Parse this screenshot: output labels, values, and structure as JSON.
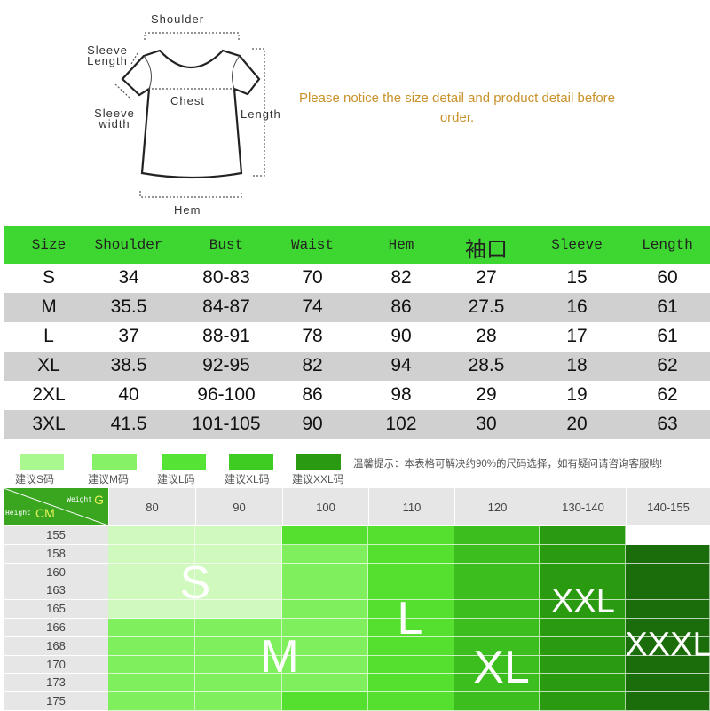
{
  "diagram": {
    "shoulder": "Shoulder",
    "sleeve_length": "Sleeve Length",
    "chest": "Chest",
    "sleeve_width": "Sleeve width",
    "length": "Length",
    "hem": "Hem"
  },
  "notice": "Please notice the size detail and product detail before order.",
  "size_table": {
    "headers": [
      "Size",
      "Shoulder",
      "Bust",
      "Waist",
      "Hem",
      "袖口",
      "Sleeve",
      "Length"
    ],
    "rows": [
      [
        "S",
        "34",
        "80-83",
        "70",
        "82",
        "27",
        "15",
        "60"
      ],
      [
        "M",
        "35.5",
        "84-87",
        "74",
        "86",
        "27.5",
        "16",
        "61"
      ],
      [
        "L",
        "37",
        "88-91",
        "78",
        "90",
        "28",
        "17",
        "61"
      ],
      [
        "XL",
        "38.5",
        "92-95",
        "82",
        "94",
        "28.5",
        "18",
        "62"
      ],
      [
        "2XL",
        "40",
        "96-100",
        "86",
        "98",
        "29",
        "19",
        "62"
      ],
      [
        "3XL",
        "41.5",
        "101-105",
        "90",
        "102",
        "30",
        "20",
        "63"
      ]
    ],
    "header_color": "#3ed630",
    "stripe_color": "#d0d0d0"
  },
  "legend": [
    {
      "label": "建议S码",
      "color": "#a9f88f"
    },
    {
      "label": "建议M码",
      "color": "#86f066"
    },
    {
      "label": "建议L码",
      "color": "#55e336"
    },
    {
      "label": "建议XL码",
      "color": "#3ecb22"
    },
    {
      "label": "建议XXL码",
      "color": "#2a9a12"
    }
  ],
  "tip": "温馨提示：本表格可解决约90%的尺码选择，如有疑问请咨询客服哟!",
  "recommend": {
    "corner_weight": "Weight",
    "corner_weight_unit": "G",
    "corner_height": "Height",
    "corner_height_unit": "CM",
    "weights": [
      "80",
      "90",
      "100",
      "110",
      "120",
      "130-140",
      "140-155"
    ],
    "heights": [
      "155",
      "158",
      "160",
      "163",
      "165",
      "166",
      "168",
      "170",
      "173",
      "175"
    ],
    "colors": {
      "S": "#cff9bd",
      "M": "#80ef5e",
      "L": "#55e030",
      "XL": "#3cbf1e",
      "XXL": "#2a9a10",
      "XXXL": "#1b6c0a",
      "": "#ffffff"
    },
    "grid": [
      [
        "S",
        "S",
        "L",
        "L",
        "XL",
        "XXL",
        ""
      ],
      [
        "S",
        "S",
        "M",
        "L",
        "XL",
        "XXL",
        "XXXL"
      ],
      [
        "S",
        "S",
        "M",
        "L",
        "XL",
        "XXL",
        "XXXL"
      ],
      [
        "S",
        "S",
        "M",
        "L",
        "XL",
        "XXL",
        "XXXL"
      ],
      [
        "S",
        "S",
        "M",
        "L",
        "XL",
        "XXL",
        "XXXL"
      ],
      [
        "M",
        "M",
        "M",
        "L",
        "XL",
        "XXL",
        "XXXL"
      ],
      [
        "M",
        "M",
        "M",
        "L",
        "XL",
        "XXL",
        "XXXL"
      ],
      [
        "M",
        "M",
        "M",
        "L",
        "XL",
        "XXL",
        "XXXL"
      ],
      [
        "M",
        "M",
        "M",
        "L",
        "XL",
        "XXL",
        "XXXL"
      ],
      [
        "M",
        "M",
        "L",
        "L",
        "XL",
        "XXL",
        "XXXL"
      ]
    ],
    "size_labels": [
      "S",
      "M",
      "L",
      "XL",
      "XXL",
      "XXXL"
    ]
  }
}
